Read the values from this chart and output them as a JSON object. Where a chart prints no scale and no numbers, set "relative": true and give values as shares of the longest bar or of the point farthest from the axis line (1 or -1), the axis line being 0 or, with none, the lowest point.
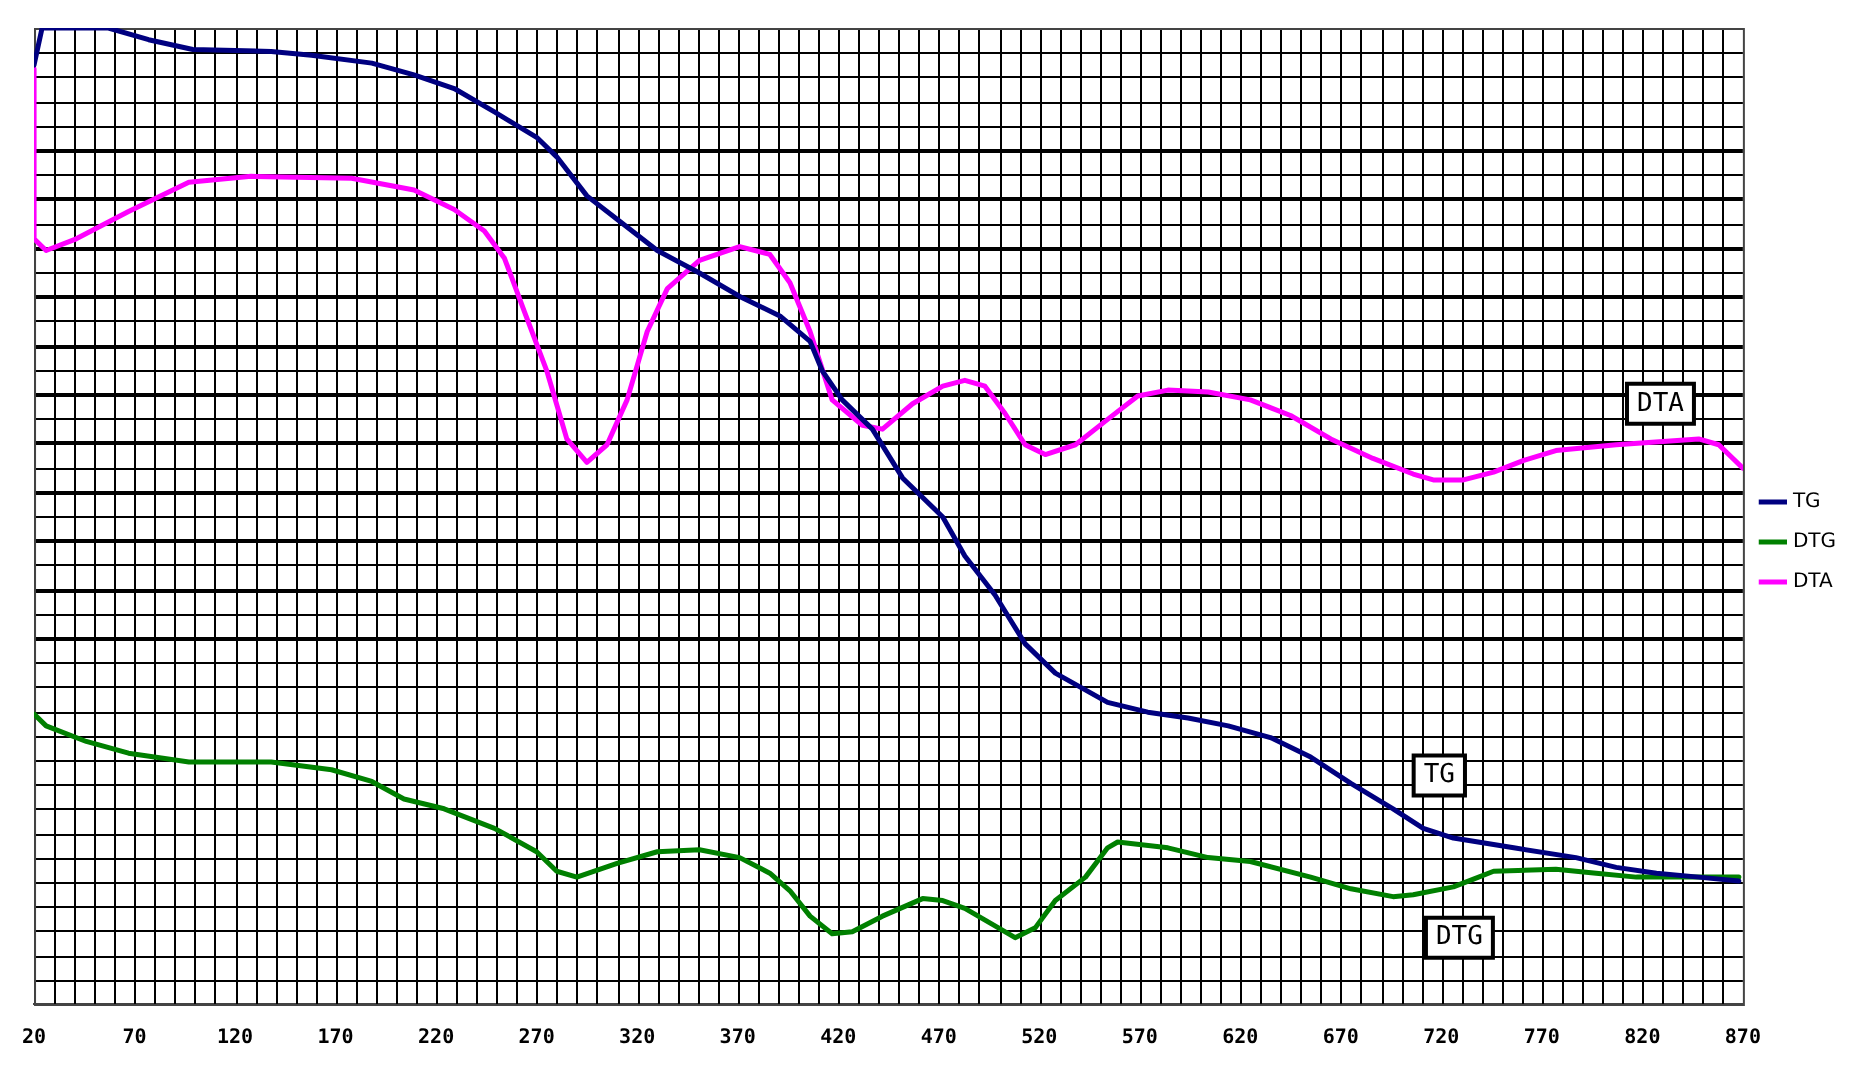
{
  "chart_data": {
    "type": "line",
    "relative": true,
    "xlim": [
      20,
      870
    ],
    "xticks": [
      20,
      70,
      120,
      170,
      220,
      270,
      320,
      370,
      420,
      470,
      520,
      570,
      620,
      670,
      720,
      770,
      820,
      870
    ],
    "grid": true,
    "legend": "right",
    "marker": "none",
    "line_style": "solid",
    "annotations": [
      {
        "text": "DTA",
        "x": 829,
        "y": 0.615
      },
      {
        "text": "TG",
        "x": 719,
        "y": 0.234
      },
      {
        "text": "DTG",
        "x": 729,
        "y": 0.068
      }
    ],
    "series": [
      {
        "name": "TG",
        "color": "#000080",
        "x": [
          20,
          24,
          57,
          77,
          99,
          138,
          158,
          188,
          209,
          229,
          249,
          270,
          280,
          295,
          310,
          330,
          351,
          371,
          391,
          406,
          412,
          422,
          437,
          452,
          472,
          483,
          498,
          513,
          528,
          554,
          574,
          594,
          614,
          635,
          655,
          675,
          696,
          711,
          726,
          756,
          787,
          807,
          827,
          848,
          868
        ],
        "values": [
          0.962,
          1.0,
          1.0,
          0.988,
          0.978,
          0.976,
          0.972,
          0.964,
          0.952,
          0.938,
          0.914,
          0.888,
          0.868,
          0.828,
          0.804,
          0.772,
          0.749,
          0.725,
          0.705,
          0.679,
          0.649,
          0.619,
          0.589,
          0.539,
          0.499,
          0.459,
          0.419,
          0.369,
          0.339,
          0.309,
          0.299,
          0.293,
          0.285,
          0.273,
          0.253,
          0.226,
          0.2,
          0.18,
          0.17,
          0.16,
          0.15,
          0.14,
          0.134,
          0.13,
          0.126
        ]
      },
      {
        "name": "DTG",
        "color": "#008000",
        "x": [
          20,
          26,
          46,
          67,
          97,
          138,
          168,
          188,
          204,
          224,
          249,
          270,
          280,
          290,
          310,
          330,
          351,
          371,
          386,
          396,
          406,
          417,
          427,
          442,
          462,
          472,
          483,
          498,
          508,
          518,
          528,
          543,
          554,
          559,
          584,
          604,
          625,
          655,
          675,
          696,
          706,
          726,
          736,
          746,
          777,
          797,
          817,
          868
        ],
        "values": [
          0.297,
          0.285,
          0.269,
          0.257,
          0.248,
          0.248,
          0.24,
          0.228,
          0.21,
          0.2,
          0.18,
          0.156,
          0.136,
          0.13,
          0.144,
          0.156,
          0.158,
          0.15,
          0.134,
          0.116,
          0.09,
          0.072,
          0.074,
          0.09,
          0.108,
          0.106,
          0.098,
          0.08,
          0.068,
          0.078,
          0.106,
          0.13,
          0.16,
          0.166,
          0.16,
          0.15,
          0.146,
          0.13,
          0.118,
          0.11,
          0.112,
          0.12,
          0.128,
          0.136,
          0.138,
          0.134,
          0.13,
          0.13
        ]
      },
      {
        "name": "DTA",
        "color": "#ff00ff",
        "x": [
          20,
          20,
          26,
          41,
          67,
          97,
          128,
          178,
          209,
          229,
          244,
          254,
          264,
          275,
          285,
          295,
          305,
          315,
          325,
          335,
          351,
          371,
          386,
          396,
          406,
          417,
          432,
          442,
          457,
          472,
          483,
          493,
          503,
          513,
          523,
          538,
          554,
          569,
          584,
          604,
          625,
          645,
          665,
          686,
          706,
          716,
          731,
          746,
          761,
          777,
          807,
          848,
          858,
          870
        ],
        "values": [
          0.958,
          0.784,
          0.772,
          0.784,
          0.812,
          0.842,
          0.848,
          0.846,
          0.834,
          0.814,
          0.792,
          0.764,
          0.709,
          0.649,
          0.579,
          0.555,
          0.573,
          0.619,
          0.689,
          0.733,
          0.762,
          0.776,
          0.768,
          0.739,
          0.689,
          0.619,
          0.593,
          0.589,
          0.615,
          0.633,
          0.639,
          0.633,
          0.605,
          0.573,
          0.563,
          0.573,
          0.599,
          0.623,
          0.629,
          0.627,
          0.619,
          0.603,
          0.579,
          0.559,
          0.543,
          0.537,
          0.537,
          0.545,
          0.557,
          0.567,
          0.573,
          0.579,
          0.573,
          0.549
        ]
      }
    ]
  }
}
